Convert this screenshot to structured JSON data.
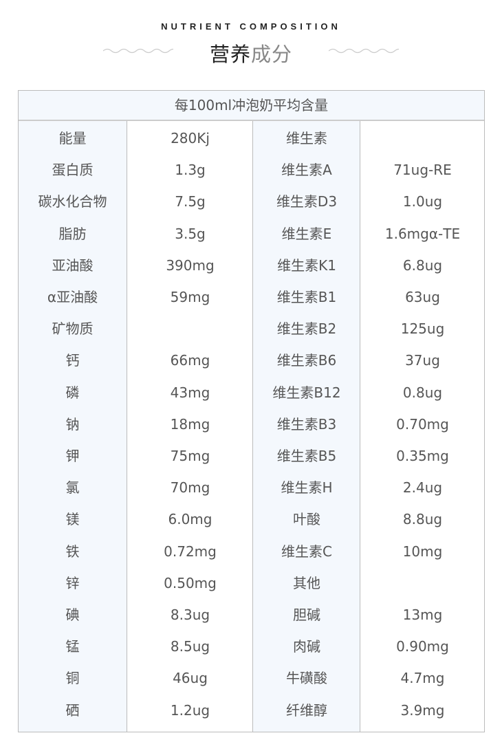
{
  "title_en": "NUTRIENT COMPOSITION",
  "title_cn_dark": "营养",
  "title_cn_light": "成分",
  "table": {
    "header": "每100ml冲泡奶平均含量",
    "rows": [
      [
        "能量",
        "280Kj",
        "维生素",
        ""
      ],
      [
        "蛋白质",
        "1.3g",
        "维生素A",
        "71ug-RE"
      ],
      [
        "碳水化合物",
        "7.5g",
        "维生素D3",
        "1.0ug"
      ],
      [
        "脂肪",
        "3.5g",
        "维生素E",
        "1.6mgα-TE"
      ],
      [
        "亚油酸",
        "390mg",
        "维生素K1",
        "6.8ug"
      ],
      [
        "α亚油酸",
        "59mg",
        "维生素B1",
        "63ug"
      ],
      [
        "矿物质",
        "",
        "维生素B2",
        "125ug"
      ],
      [
        "钙",
        "66mg",
        "维生素B6",
        "37ug"
      ],
      [
        "磷",
        "43mg",
        "维生素B12",
        "0.8ug"
      ],
      [
        "钠",
        "18mg",
        "维生素B3",
        "0.70mg"
      ],
      [
        "钾",
        "75mg",
        "维生素B5",
        "0.35mg"
      ],
      [
        "氯",
        "70mg",
        "维生素H",
        "2.4ug"
      ],
      [
        "镁",
        "6.0mg",
        "叶酸",
        "8.8ug"
      ],
      [
        "铁",
        "0.72mg",
        "维生素C",
        "10mg"
      ],
      [
        "锌",
        "0.50mg",
        "其他",
        ""
      ],
      [
        "碘",
        "8.3ug",
        "胆碱",
        "13mg"
      ],
      [
        "锰",
        "8.5ug",
        "肉碱",
        "0.90mg"
      ],
      [
        "铜",
        "46ug",
        "牛磺酸",
        "4.7mg"
      ],
      [
        "硒",
        "1.2ug",
        "纤维醇",
        "3.9mg"
      ]
    ]
  }
}
